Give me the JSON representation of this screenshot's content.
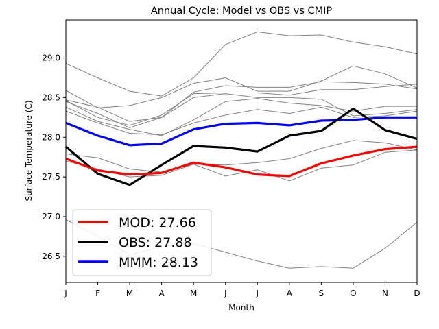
{
  "chart_data": {
    "type": "line",
    "title": "Annual Cycle: Model vs OBS vs CMIP",
    "xlabel": "Month",
    "ylabel": "Surface Temperature (C)",
    "categories": [
      "J",
      "F",
      "M",
      "A",
      "M",
      "J",
      "J",
      "A",
      "S",
      "O",
      "N",
      "D"
    ],
    "ylim": [
      26.17,
      29.48
    ],
    "yticks": [
      "26.5",
      "27.0",
      "27.5",
      "28.0",
      "28.5",
      "29.0"
    ],
    "grid": false,
    "legend_position": "lower-left",
    "cmip_color": "#808080",
    "cmip_members": [
      [
        28.93,
        28.75,
        28.58,
        28.52,
        28.75,
        29.17,
        29.33,
        29.28,
        29.29,
        29.2,
        29.14,
        29.05
      ],
      [
        28.59,
        28.37,
        28.4,
        28.5,
        28.68,
        28.75,
        28.58,
        28.58,
        28.71,
        28.9,
        28.8,
        28.62
      ],
      [
        28.47,
        28.38,
        28.2,
        28.25,
        28.57,
        28.65,
        28.63,
        28.63,
        28.7,
        28.69,
        28.67,
        28.61
      ],
      [
        28.46,
        28.25,
        28.15,
        28.28,
        28.55,
        28.56,
        28.56,
        28.53,
        28.6,
        28.6,
        28.64,
        28.67
      ],
      [
        28.45,
        28.3,
        28.12,
        28.25,
        28.5,
        28.55,
        28.5,
        28.5,
        28.48,
        28.27,
        28.3,
        28.35
      ],
      [
        28.38,
        28.2,
        28.1,
        28.02,
        28.22,
        28.45,
        28.49,
        28.43,
        28.4,
        28.33,
        28.39,
        28.39
      ],
      [
        28.33,
        28.18,
        28.05,
        28.03,
        28.18,
        28.28,
        28.35,
        28.3,
        28.38,
        28.25,
        28.27,
        28.33
      ],
      [
        27.79,
        27.74,
        27.6,
        27.56,
        27.66,
        27.65,
        27.68,
        27.73,
        27.86,
        27.96,
        27.93,
        27.84
      ],
      [
        27.7,
        27.6,
        27.5,
        27.52,
        27.66,
        27.51,
        27.59,
        27.45,
        27.61,
        27.65,
        27.81,
        27.84
      ],
      [
        26.96,
        26.75,
        26.52,
        26.62,
        26.66,
        26.55,
        26.44,
        26.35,
        26.37,
        26.35,
        26.6,
        26.93
      ]
    ],
    "series": [
      {
        "name": "MOD",
        "mean": "27.66",
        "color": "#ff0000",
        "values": [
          27.73,
          27.58,
          27.53,
          27.55,
          27.68,
          27.62,
          27.53,
          27.51,
          27.67,
          27.77,
          27.85,
          27.88
        ]
      },
      {
        "name": "OBS",
        "mean": "27.88",
        "color": "#000000",
        "values": [
          27.88,
          27.54,
          27.4,
          27.65,
          27.89,
          27.87,
          27.82,
          28.02,
          28.08,
          28.36,
          28.09,
          27.98
        ]
      },
      {
        "name": "MMM",
        "mean": "28.13",
        "color": "#0000ff",
        "values": [
          28.18,
          28.02,
          27.9,
          27.92,
          28.1,
          28.17,
          28.18,
          28.15,
          28.21,
          28.22,
          28.25,
          28.25
        ]
      }
    ]
  }
}
